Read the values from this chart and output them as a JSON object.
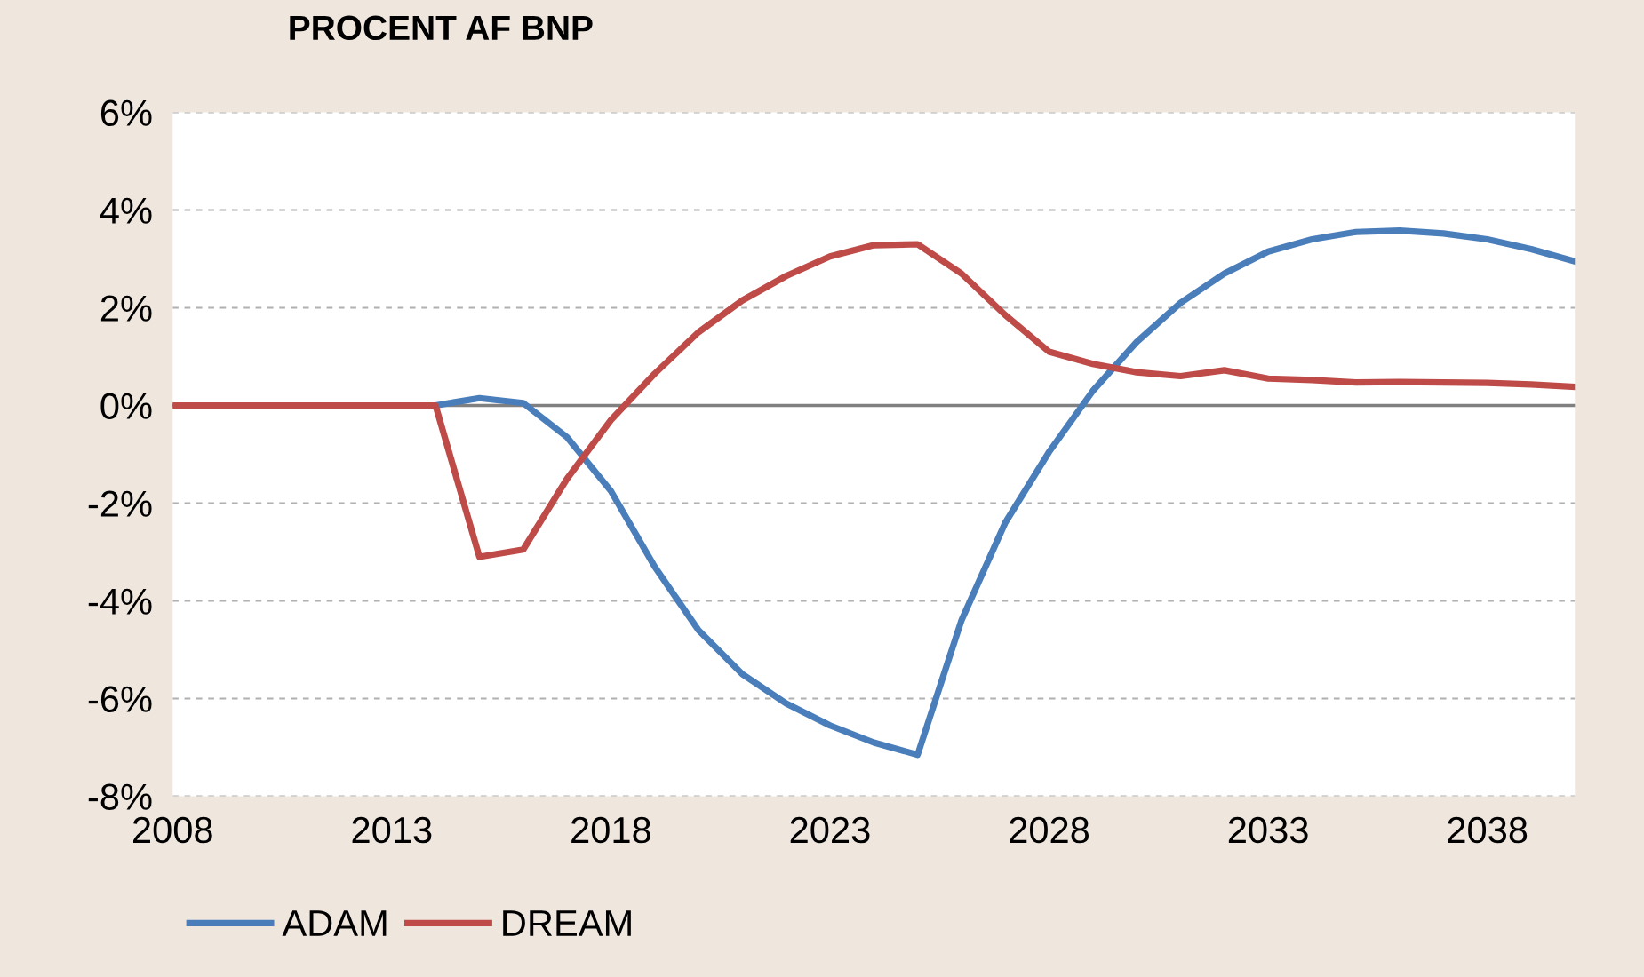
{
  "chart_data": {
    "type": "line",
    "title": "PROCENT AF BNP",
    "x": [
      2008,
      2009,
      2010,
      2011,
      2012,
      2013,
      2014,
      2015,
      2016,
      2017,
      2018,
      2019,
      2020,
      2021,
      2022,
      2023,
      2024,
      2025,
      2026,
      2027,
      2028,
      2029,
      2030,
      2031,
      2032,
      2033,
      2034,
      2035,
      2036,
      2037,
      2038,
      2039,
      2040
    ],
    "series": [
      {
        "name": "ADAM",
        "color": "#4a7ebb",
        "values": [
          null,
          null,
          null,
          null,
          null,
          null,
          0,
          0.15,
          0.05,
          -0.65,
          -1.75,
          -3.3,
          -4.6,
          -5.5,
          -6.1,
          -6.55,
          -6.9,
          -7.15,
          -4.4,
          -2.4,
          -0.95,
          0.3,
          1.3,
          2.1,
          2.7,
          3.15,
          3.4,
          3.55,
          3.58,
          3.52,
          3.4,
          3.2,
          2.95
        ]
      },
      {
        "name": "DREAM",
        "color": "#be4b48",
        "values": [
          0,
          0,
          0,
          0,
          0,
          0,
          0,
          -3.1,
          -2.95,
          -1.5,
          -0.3,
          0.65,
          1.5,
          2.15,
          2.65,
          3.05,
          3.28,
          3.3,
          2.7,
          1.85,
          1.1,
          0.85,
          0.68,
          0.6,
          0.72,
          0.55,
          0.52,
          0.47,
          0.48,
          0.47,
          0.46,
          0.43,
          0.38
        ]
      }
    ],
    "xlim": [
      2008,
      2040
    ],
    "xticks": [
      2008,
      2013,
      2018,
      2023,
      2028,
      2033,
      2038
    ],
    "ylim": [
      -8,
      6
    ],
    "yticks": [
      {
        "value": -8,
        "label": "-8%"
      },
      {
        "value": -6,
        "label": "-6%"
      },
      {
        "value": -4,
        "label": "-4%"
      },
      {
        "value": -2,
        "label": "-2%"
      },
      {
        "value": 0,
        "label": "0%"
      },
      {
        "value": 2,
        "label": "2%"
      },
      {
        "value": 4,
        "label": "4%"
      },
      {
        "value": 6,
        "label": "6%"
      }
    ],
    "ref_lines": [
      {
        "axis": "y",
        "value": 0,
        "color": "#808080"
      }
    ],
    "grid": "y",
    "legend": "bottom",
    "line_style": "solid",
    "marker": "none"
  }
}
